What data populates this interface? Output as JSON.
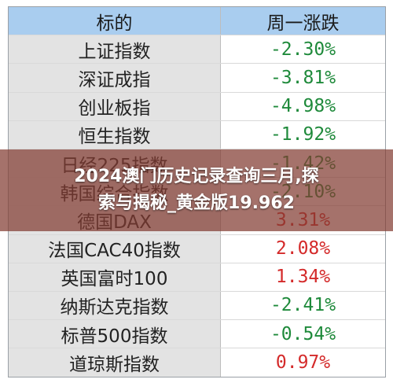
{
  "table": {
    "header": {
      "name": "标的",
      "value": "周一涨跌"
    },
    "rows": [
      {
        "name": "上证指数",
        "value": "-2.30%",
        "trend": "down"
      },
      {
        "name": "深证成指",
        "value": "-3.81%",
        "trend": "down"
      },
      {
        "name": "创业板指",
        "value": "-4.98%",
        "trend": "down"
      },
      {
        "name": "恒生指数",
        "value": "-1.92%",
        "trend": "down"
      },
      {
        "name": "日经225指数",
        "value": "-1.42%",
        "trend": "down"
      },
      {
        "name": "韩国综合指数",
        "value": "-2.10%",
        "trend": "down"
      },
      {
        "name": "德国DAX",
        "value": "3.31%",
        "trend": "up"
      },
      {
        "name": "法国CAC40指数",
        "value": "2.08%",
        "trend": "up"
      },
      {
        "name": "英国富时100",
        "value": "1.34%",
        "trend": "up"
      },
      {
        "name": "纳斯达克指数",
        "value": "-2.41%",
        "trend": "down"
      },
      {
        "name": "标普500指数",
        "value": "-0.54%",
        "trend": "down"
      },
      {
        "name": "道琼斯指数",
        "value": "0.97%",
        "trend": "up"
      }
    ]
  },
  "overlay": {
    "line1": "2024澳门历史记录查询三月,探",
    "line2": "索与揭秘_黄金版19.962"
  },
  "colors": {
    "header_bg": "#a9cdef",
    "name_bg": "#e3e3e3",
    "down": "#1f8a3b",
    "up": "#d42a2a"
  }
}
